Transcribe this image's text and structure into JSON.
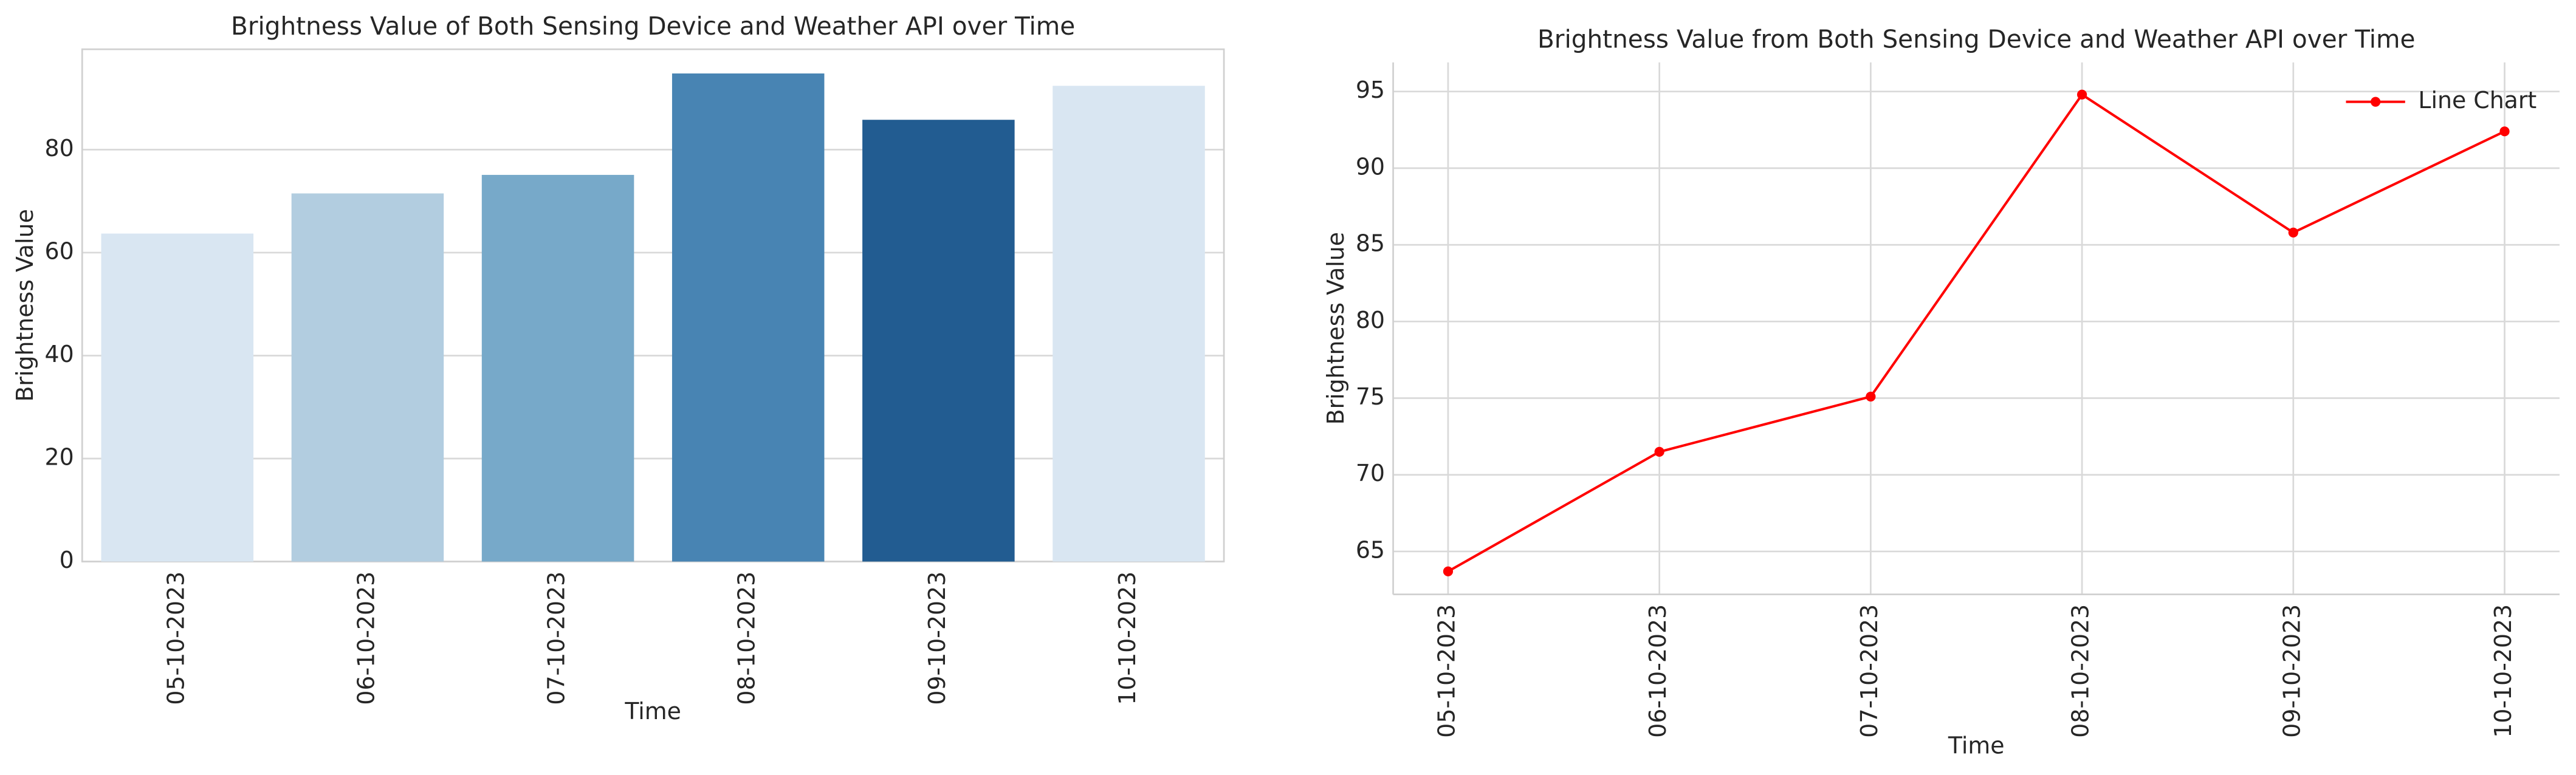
{
  "chart_data": [
    {
      "type": "bar",
      "title": "Brightness Value of Both Sensing Device and Weather API over Time",
      "x_label": "Time",
      "y_label": "Brightness Value",
      "categories": [
        "05-10-2023",
        "06-10-2023",
        "07-10-2023",
        "08-10-2023",
        "09-10-2023",
        "10-10-2023"
      ],
      "values": [
        63.7,
        71.5,
        75.1,
        94.8,
        85.8,
        92.4
      ],
      "colors": [
        "#d9e6f2",
        "#b2cde0",
        "#77a9c9",
        "#4884b3",
        "#225c91",
        "#d9e6f2"
      ],
      "ylim": [
        0,
        99.5
      ],
      "yticks": [
        0,
        20,
        40,
        60,
        80
      ],
      "grid": "y"
    },
    {
      "type": "line",
      "title": "Brightness Value from Both Sensing Device and Weather API over Time",
      "x_label": "Time",
      "y_label": "Brightness Value",
      "categories": [
        "05-10-2023",
        "06-10-2023",
        "07-10-2023",
        "08-10-2023",
        "09-10-2023",
        "10-10-2023"
      ],
      "series": [
        {
          "name": "Line Chart",
          "color": "#ff0000",
          "values": [
            63.7,
            71.5,
            75.1,
            94.8,
            85.8,
            92.4
          ]
        }
      ],
      "ylim": [
        62.2,
        96.9
      ],
      "yticks": [
        65,
        70,
        75,
        80,
        85,
        90,
        95
      ],
      "grid": "both",
      "legend": "upper right"
    }
  ]
}
